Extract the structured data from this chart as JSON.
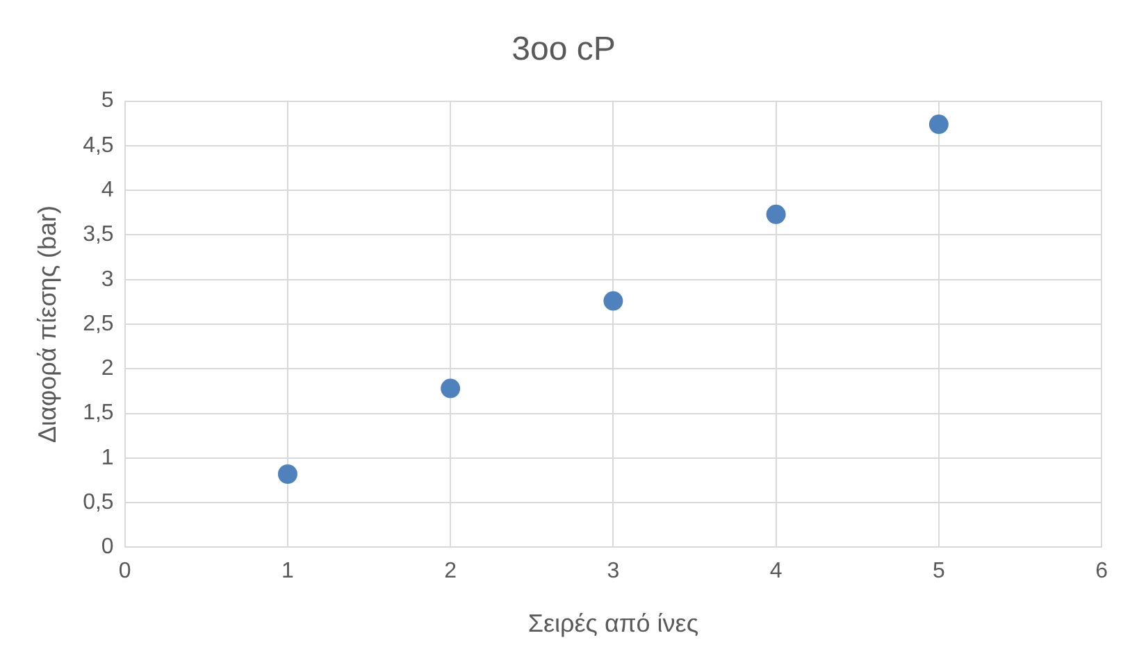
{
  "chart_data": {
    "type": "scatter",
    "title": "3oo cP",
    "xlabel": "Σειρές από ίνες",
    "ylabel": "Διαφορά πίεσης (bar)",
    "x": [
      1,
      2,
      3,
      4,
      5
    ],
    "series": [
      {
        "color": "#4f81bd",
        "values": [
          0.82,
          1.78,
          2.76,
          3.73,
          4.74
        ]
      }
    ],
    "xlim": [
      0,
      6
    ],
    "xticks": [
      0,
      1,
      2,
      3,
      4,
      5,
      6
    ],
    "ylim": [
      0,
      5
    ],
    "yticks": [
      0,
      {
        "value": 0.5,
        "label": "0,5"
      },
      1,
      {
        "value": 1.5,
        "label": "1,5"
      },
      2,
      {
        "value": 2.5,
        "label": "2,5"
      },
      3,
      {
        "value": 3.5,
        "label": "3,5"
      },
      4,
      {
        "value": 4.5,
        "label": "4,5"
      },
      5
    ],
    "grid": true,
    "legend": false,
    "marker": "circle"
  }
}
